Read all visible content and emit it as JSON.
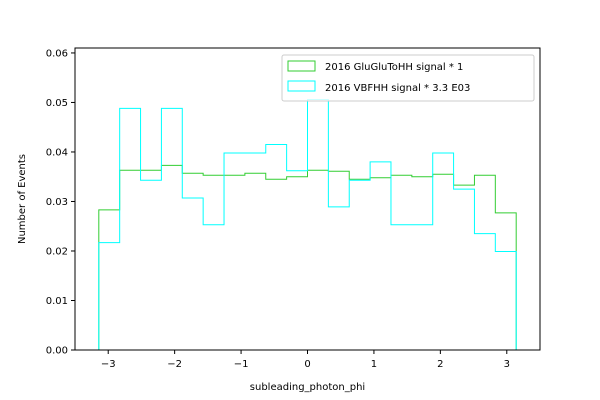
{
  "chart_data": {
    "type": "histogram-step",
    "title": "",
    "xlabel": "subleading_photon_phi",
    "ylabel": "Number of Events",
    "xlim": [
      -3.5,
      3.5
    ],
    "ylim": [
      0,
      0.061
    ],
    "xticks": [
      -3,
      -2,
      -1,
      0,
      1,
      2,
      3
    ],
    "xtick_labels": [
      "−3",
      "−2",
      "−1",
      "0",
      "1",
      "2",
      "3"
    ],
    "yticks": [
      0,
      0.01,
      0.02,
      0.03,
      0.04,
      0.05,
      0.06
    ],
    "ytick_labels": [
      "0.00",
      "0.01",
      "0.02",
      "0.03",
      "0.04",
      "0.05",
      "0.06"
    ],
    "bin_edges": [
      -3.1416,
      -2.8274,
      -2.5133,
      -2.1991,
      -1.885,
      -1.5708,
      -1.2566,
      -0.9425,
      -0.6283,
      -0.3142,
      0.0,
      0.3142,
      0.6283,
      0.9425,
      1.2566,
      1.5708,
      1.885,
      2.1991,
      2.5133,
      2.8274,
      3.1416
    ],
    "legend_position": "upper right",
    "series": [
      {
        "name": "2016 GluGluToHH signal * 1",
        "color": "#32cd32",
        "values": [
          0.0283,
          0.0363,
          0.0363,
          0.0373,
          0.0357,
          0.0353,
          0.0353,
          0.0357,
          0.0345,
          0.035,
          0.0363,
          0.0361,
          0.0345,
          0.0348,
          0.0353,
          0.035,
          0.0355,
          0.0333,
          0.0353,
          0.0277
        ]
      },
      {
        "name": "2016 VBFHH signal * 3.3 E03",
        "color": "#00ffff",
        "values": [
          0.0217,
          0.0488,
          0.0343,
          0.0488,
          0.0307,
          0.0253,
          0.0398,
          0.0398,
          0.0415,
          0.0362,
          0.0506,
          0.0289,
          0.0343,
          0.038,
          0.0253,
          0.0253,
          0.0398,
          0.0325,
          0.0235,
          0.0199
        ]
      }
    ]
  }
}
